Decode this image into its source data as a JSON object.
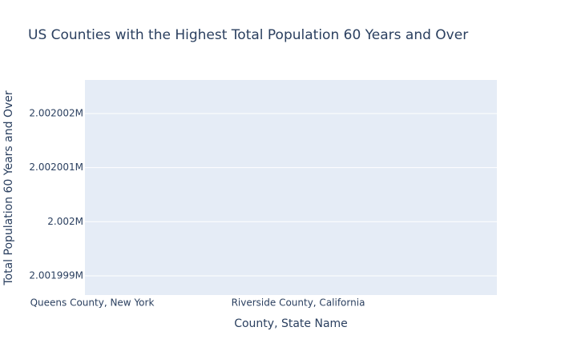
{
  "chart_data": {
    "type": "bar",
    "title": "US Counties with the Highest Total Population 60 Years and Over",
    "x_label": "County, State Name",
    "y_label": "Total Population 60 Years and Over",
    "categories": [
      "Queens County, New York",
      "Riverside County, California"
    ],
    "values": [
      null,
      null
    ],
    "color": "#636efa",
    "ylim": [
      2001998.645,
      2002002.62
    ],
    "yticks": [
      {
        "value": 2001999,
        "label": "2.001999M"
      },
      {
        "value": 2002000,
        "label": "2.002M"
      },
      {
        "value": 2002001,
        "label": "2.002001M"
      },
      {
        "value": 2002002,
        "label": "2.002002M"
      }
    ],
    "grid": true
  }
}
